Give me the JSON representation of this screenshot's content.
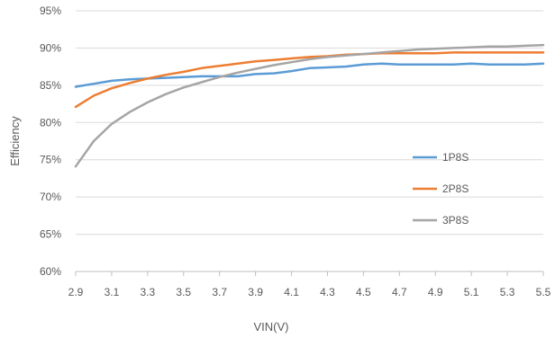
{
  "chart_data": {
    "type": "line",
    "xlabel": "VIN(V)",
    "ylabel": "Efficiency",
    "x_ticks": [
      "2.9",
      "3.1",
      "3.3",
      "3.5",
      "3.7",
      "3.9",
      "4.1",
      "4.3",
      "4.5",
      "4.7",
      "4.9",
      "5.1",
      "5.3",
      "5.5"
    ],
    "y_ticks": [
      "60%",
      "65%",
      "70%",
      "75%",
      "80%",
      "85%",
      "90%",
      "95%"
    ],
    "xlim": [
      2.9,
      5.5
    ],
    "ylim": [
      60,
      95
    ],
    "grid": "horizontal",
    "legend_position": "right",
    "series": [
      {
        "name": "1P8S",
        "color": "#5b9bd5",
        "x": [
          2.9,
          3.0,
          3.1,
          3.2,
          3.3,
          3.4,
          3.5,
          3.6,
          3.7,
          3.8,
          3.9,
          4.0,
          4.1,
          4.2,
          4.3,
          4.4,
          4.5,
          4.6,
          4.7,
          4.8,
          4.9,
          5.0,
          5.1,
          5.2,
          5.3,
          5.4,
          5.5
        ],
        "y": [
          84.8,
          85.2,
          85.6,
          85.8,
          85.9,
          86.0,
          86.1,
          86.2,
          86.2,
          86.2,
          86.5,
          86.6,
          86.9,
          87.3,
          87.4,
          87.5,
          87.8,
          87.9,
          87.8,
          87.8,
          87.8,
          87.8,
          87.9,
          87.8,
          87.8,
          87.8,
          87.9
        ]
      },
      {
        "name": "2P8S",
        "color": "#ed7d31",
        "x": [
          2.9,
          3.0,
          3.1,
          3.2,
          3.3,
          3.4,
          3.5,
          3.6,
          3.7,
          3.8,
          3.9,
          4.0,
          4.1,
          4.2,
          4.3,
          4.4,
          4.5,
          4.6,
          4.7,
          4.8,
          4.9,
          5.0,
          5.1,
          5.2,
          5.3,
          5.4,
          5.5
        ],
        "y": [
          82.1,
          83.6,
          84.6,
          85.3,
          85.9,
          86.4,
          86.8,
          87.3,
          87.6,
          87.9,
          88.2,
          88.4,
          88.6,
          88.8,
          88.9,
          89.1,
          89.2,
          89.3,
          89.3,
          89.3,
          89.3,
          89.4,
          89.4,
          89.4,
          89.4,
          89.4,
          89.4
        ]
      },
      {
        "name": "3P8S",
        "color": "#a5a5a5",
        "x": [
          2.9,
          3.0,
          3.1,
          3.2,
          3.3,
          3.4,
          3.5,
          3.6,
          3.7,
          3.8,
          3.9,
          4.0,
          4.1,
          4.2,
          4.3,
          4.4,
          4.5,
          4.6,
          4.7,
          4.8,
          4.9,
          5.0,
          5.1,
          5.2,
          5.3,
          5.4,
          5.5
        ],
        "y": [
          74.1,
          77.5,
          79.8,
          81.4,
          82.7,
          83.8,
          84.7,
          85.4,
          86.1,
          86.7,
          87.2,
          87.7,
          88.1,
          88.5,
          88.8,
          89.0,
          89.2,
          89.4,
          89.6,
          89.8,
          89.9,
          90.0,
          90.1,
          90.2,
          90.2,
          90.3,
          90.4
        ]
      }
    ]
  }
}
